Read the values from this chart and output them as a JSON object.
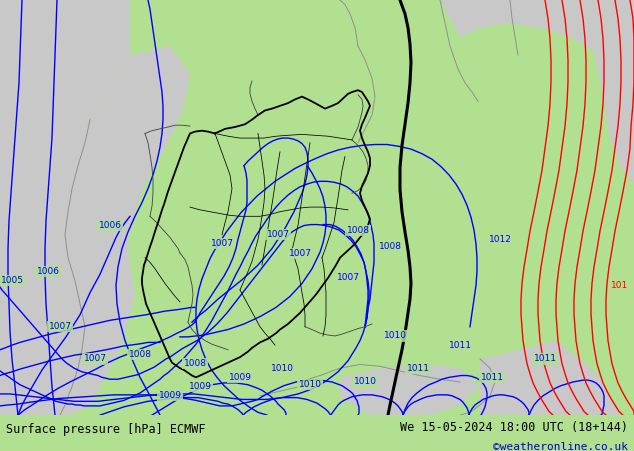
{
  "title_left": "Surface pressure [hPa] ECMWF",
  "title_right": "We 15-05-2024 18:00 UTC (18+144)",
  "credit": "©weatheronline.co.uk",
  "bg_color": "#b0e090",
  "gray_color": "#c8c8c8",
  "blue_color": "#0000ff",
  "red_color": "#ff0000",
  "black_color": "#000000",
  "footer_bg": "#c8c8c8",
  "footer_fontsize": 8.5,
  "credit_color": "#0000cc",
  "isobar_lw": 1.0,
  "border_lw": 1.3,
  "coast_lw": 0.7,
  "black_front_lw": 2.2
}
